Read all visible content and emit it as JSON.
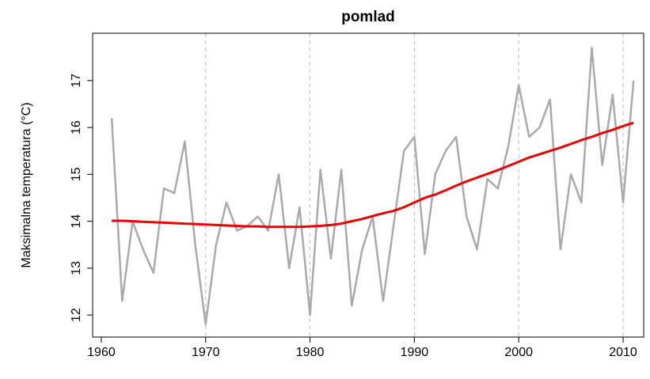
{
  "chart_data": {
    "type": "line",
    "title": "pomlad",
    "y_label": "Maksimalna temperatura (°C)",
    "x": [
      1961,
      1962,
      1963,
      1964,
      1965,
      1966,
      1967,
      1968,
      1969,
      1970,
      1971,
      1972,
      1973,
      1974,
      1975,
      1976,
      1977,
      1978,
      1979,
      1980,
      1981,
      1982,
      1983,
      1984,
      1985,
      1986,
      1987,
      1988,
      1989,
      1990,
      1991,
      1992,
      1993,
      1994,
      1995,
      1996,
      1997,
      1998,
      1999,
      2000,
      2001,
      2002,
      2003,
      2004,
      2005,
      2006,
      2007,
      2008,
      2009,
      2010,
      2011
    ],
    "series": [
      {
        "color": "#aaaaaa",
        "values": [
          16.2,
          12.3,
          14.0,
          13.4,
          12.9,
          14.7,
          14.6,
          15.7,
          13.5,
          11.8,
          13.5,
          14.4,
          13.8,
          13.9,
          14.1,
          13.8,
          15.0,
          13.0,
          14.3,
          12.0,
          15.1,
          13.2,
          15.1,
          12.2,
          13.4,
          14.1,
          12.3,
          13.9,
          15.5,
          15.8,
          13.3,
          15.0,
          15.5,
          15.8,
          14.1,
          13.4,
          14.9,
          14.7,
          15.6,
          16.9,
          15.8,
          16.0,
          16.6,
          13.4,
          15.0,
          14.4,
          17.7,
          15.2,
          16.7,
          14.4,
          17.0
        ]
      },
      {
        "color": "#ee0000",
        "values": [
          14.01,
          14.01,
          14.0,
          13.99,
          13.98,
          13.97,
          13.96,
          13.95,
          13.94,
          13.93,
          13.92,
          13.91,
          13.9,
          13.89,
          13.89,
          13.88,
          13.88,
          13.88,
          13.88,
          13.89,
          13.9,
          13.92,
          13.95,
          14.0,
          14.05,
          14.11,
          14.17,
          14.22,
          14.3,
          14.4,
          14.5,
          14.57,
          14.66,
          14.76,
          14.85,
          14.93,
          15.01,
          15.09,
          15.18,
          15.27,
          15.36,
          15.43,
          15.5,
          15.57,
          15.65,
          15.73,
          15.8,
          15.88,
          15.95,
          16.03,
          16.1
        ]
      }
    ],
    "xlim": [
      1959.17,
      2011.97
    ],
    "ylim": [
      11.53,
      18.01
    ],
    "xticks": [
      1960,
      1970,
      1980,
      1990,
      2000,
      2010
    ],
    "yticks": [
      12,
      13,
      14,
      15,
      16,
      17
    ],
    "xgrid": [
      1970,
      1980,
      1990,
      2000,
      2010
    ]
  }
}
